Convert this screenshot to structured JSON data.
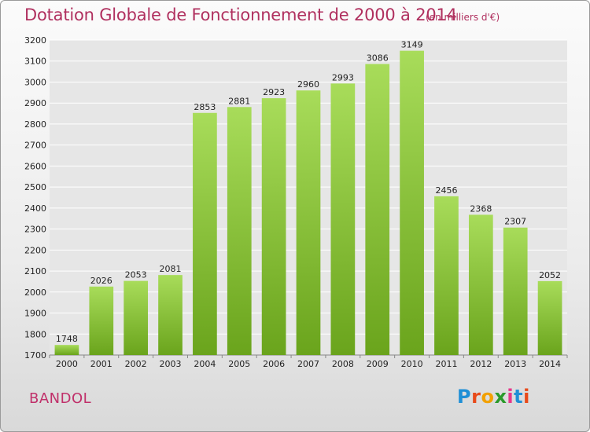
{
  "header": {
    "title": "Dotation Globale de Fonctionnement de 2000 à 2014",
    "unit": "(en milliers d'€)"
  },
  "footer": {
    "location": "BANDOL",
    "logo_text": "Proxiti",
    "logo_colors": [
      "#1f8fd6",
      "#e84a1a",
      "#f2a000",
      "#2a9a2a",
      "#e8368a",
      "#1f8fd6",
      "#e84a1a"
    ]
  },
  "colors": {
    "bar_top": "#a8dc5a",
    "bar_bottom": "#6aa41c",
    "grid": "#ffffff",
    "plot_bg": "#e6e6e6"
  },
  "chart_data": {
    "type": "bar",
    "categories": [
      "2000",
      "2001",
      "2002",
      "2003",
      "2004",
      "2005",
      "2006",
      "2007",
      "2008",
      "2009",
      "2010",
      "2011",
      "2012",
      "2013",
      "2014"
    ],
    "values": [
      1748,
      2026,
      2053,
      2081,
      2853,
      2881,
      2923,
      2960,
      2993,
      3086,
      3149,
      2456,
      2368,
      2307,
      2052
    ],
    "title": "Dotation Globale de Fonctionnement de 2000 à 2014",
    "ylabel": "(en milliers d'€)",
    "xlabel": "",
    "ylim": [
      1700,
      3200
    ],
    "yticks": [
      1700,
      1800,
      1900,
      2000,
      2100,
      2200,
      2300,
      2400,
      2500,
      2600,
      2700,
      2800,
      2900,
      3000,
      3100,
      3200
    ],
    "grid": true,
    "legend": "none"
  }
}
